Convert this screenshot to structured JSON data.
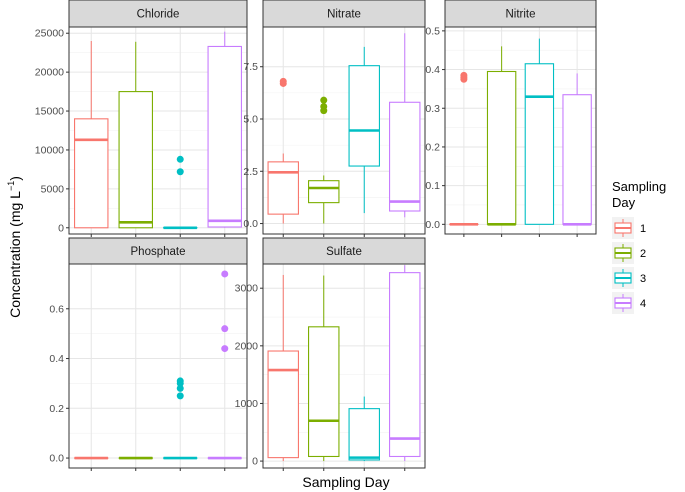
{
  "chart_data": {
    "type": "box",
    "title": "",
    "xlabel": "Sampling Day",
    "ylabel": "Concentration (mg L",
    "ylabel_superscript": "−1",
    "ylabel_close": ")",
    "legend": {
      "title_line1": "Sampling",
      "title_line2": "Day",
      "position": "right",
      "entries": [
        {
          "label": "1",
          "color": "#F8766D"
        },
        {
          "label": "2",
          "color": "#7CAE00"
        },
        {
          "label": "3",
          "color": "#00BFC4"
        },
        {
          "label": "4",
          "color": "#C77CFF"
        }
      ]
    },
    "categories": [
      "1",
      "2",
      "3",
      "4"
    ],
    "panels": [
      {
        "name": "Chloride",
        "ylim": [
          -800,
          25800
        ],
        "yticks": [
          0,
          5000,
          10000,
          15000,
          20000,
          25000
        ],
        "ytick_labels": [
          "0",
          "5000",
          "10000",
          "15000",
          "20000",
          "25000"
        ],
        "boxes": [
          {
            "min": 0,
            "q1": 0,
            "median": 11300,
            "q3": 14000,
            "max": 24000,
            "outliers": []
          },
          {
            "min": 0,
            "q1": 0,
            "median": 700,
            "q3": 17500,
            "max": 23900,
            "outliers": []
          },
          {
            "min": 0,
            "q1": 0,
            "median": 0,
            "q3": 0,
            "max": 0,
            "outliers": [
              7200,
              8800
            ]
          },
          {
            "min": 0,
            "q1": 100,
            "median": 900,
            "q3": 23300,
            "max": 25200,
            "outliers": []
          }
        ]
      },
      {
        "name": "Nitrate",
        "ylim": [
          -0.5,
          9.4
        ],
        "yticks": [
          0,
          2.5,
          5.0,
          7.5
        ],
        "ytick_labels": [
          "0.0",
          "2.5",
          "5.0",
          "7.5"
        ],
        "boxes": [
          {
            "min": 0,
            "q1": 0.45,
            "median": 2.45,
            "q3": 2.95,
            "max": 3.35,
            "outliers": [
              6.7,
              6.8
            ]
          },
          {
            "min": 0,
            "q1": 1.0,
            "median": 1.7,
            "q3": 2.05,
            "max": 2.3,
            "outliers": [
              5.4,
              5.6,
              5.9
            ]
          },
          {
            "min": 0.5,
            "q1": 2.75,
            "median": 4.45,
            "q3": 7.55,
            "max": 8.45,
            "outliers": []
          },
          {
            "min": 0.3,
            "q1": 0.6,
            "median": 1.05,
            "q3": 5.8,
            "max": 9.1,
            "outliers": []
          }
        ]
      },
      {
        "name": "Nitrite",
        "ylim": [
          -0.025,
          0.51
        ],
        "yticks": [
          0,
          0.1,
          0.2,
          0.3,
          0.4,
          0.5
        ],
        "ytick_labels": [
          "0.0",
          "0.1",
          "0.2",
          "0.3",
          "0.4",
          "0.5"
        ],
        "boxes": [
          {
            "min": 0,
            "q1": 0,
            "median": 0,
            "q3": 0,
            "max": 0,
            "outliers": [
              0.375,
              0.38,
              0.385
            ]
          },
          {
            "min": 0,
            "q1": 0,
            "median": 0,
            "q3": 0.395,
            "max": 0.46,
            "outliers": []
          },
          {
            "min": 0,
            "q1": 0,
            "median": 0.33,
            "q3": 0.415,
            "max": 0.48,
            "outliers": []
          },
          {
            "min": 0,
            "q1": 0,
            "median": 0,
            "q3": 0.335,
            "max": 0.39,
            "outliers": []
          }
        ]
      },
      {
        "name": "Phosphate",
        "ylim": [
          -0.04,
          0.78
        ],
        "yticks": [
          0,
          0.2,
          0.4,
          0.6
        ],
        "ytick_labels": [
          "0.0",
          "0.2",
          "0.4",
          "0.6"
        ],
        "boxes": [
          {
            "min": 0,
            "q1": 0,
            "median": 0,
            "q3": 0,
            "max": 0,
            "outliers": []
          },
          {
            "min": 0,
            "q1": 0,
            "median": 0,
            "q3": 0,
            "max": 0,
            "outliers": []
          },
          {
            "min": 0,
            "q1": 0,
            "median": 0,
            "q3": 0,
            "max": 0,
            "outliers": [
              0.25,
              0.28,
              0.3,
              0.31
            ]
          },
          {
            "min": 0,
            "q1": 0,
            "median": 0,
            "q3": 0,
            "max": 0,
            "outliers": [
              0.44,
              0.52,
              0.74
            ]
          }
        ]
      },
      {
        "name": "Sulfate",
        "ylim": [
          -120,
          3420
        ],
        "yticks": [
          0,
          1000,
          2000,
          3000
        ],
        "ytick_labels": [
          "0",
          "1000",
          "2000",
          "3000"
        ],
        "boxes": [
          {
            "min": 0,
            "q1": 60,
            "median": 1580,
            "q3": 1910,
            "max": 3230,
            "outliers": []
          },
          {
            "min": 0,
            "q1": 80,
            "median": 700,
            "q3": 2330,
            "max": 3220,
            "outliers": []
          },
          {
            "min": 0,
            "q1": 20,
            "median": 60,
            "q3": 910,
            "max": 1120,
            "outliers": []
          },
          {
            "min": 0,
            "q1": 80,
            "median": 390,
            "q3": 3270,
            "max": 3400,
            "outliers": []
          }
        ]
      }
    ]
  }
}
